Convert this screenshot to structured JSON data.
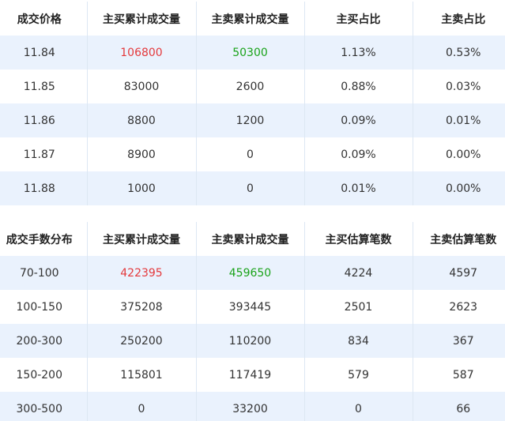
{
  "colors": {
    "buy_highlight": "#e4393c",
    "sell_highlight": "#1aa31a",
    "row_stripe": "#eaf2fd"
  },
  "price_table": {
    "headers": [
      "成交价格",
      "主买累计成交量",
      "主卖累计成交量",
      "主买占比",
      "主卖占比"
    ],
    "rows": [
      [
        "11.84",
        "106800",
        "50300",
        "1.13%",
        "0.53%"
      ],
      [
        "11.85",
        "83000",
        "2600",
        "0.88%",
        "0.03%"
      ],
      [
        "11.86",
        "8800",
        "1200",
        "0.09%",
        "0.01%"
      ],
      [
        "11.87",
        "8900",
        "0",
        "0.09%",
        "0.00%"
      ],
      [
        "11.88",
        "1000",
        "0",
        "0.01%",
        "0.00%"
      ]
    ]
  },
  "distribution_table": {
    "headers": [
      "成交手数分布",
      "主买累计成交量",
      "主卖累计成交量",
      "主买估算笔数",
      "主卖估算笔数"
    ],
    "rows": [
      [
        "70-100",
        "422395",
        "459650",
        "4224",
        "4597"
      ],
      [
        "100-150",
        "375208",
        "393445",
        "2501",
        "2623"
      ],
      [
        "200-300",
        "250200",
        "110200",
        "834",
        "367"
      ],
      [
        "150-200",
        "115801",
        "117419",
        "579",
        "587"
      ],
      [
        "300-500",
        "0",
        "33200",
        "0",
        "66"
      ]
    ]
  }
}
